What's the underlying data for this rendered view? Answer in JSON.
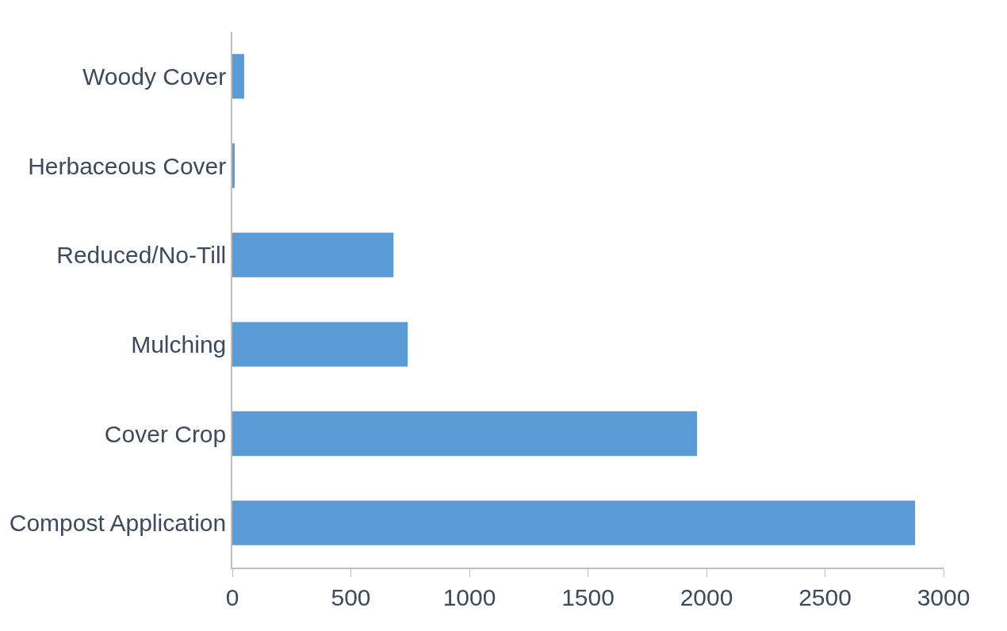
{
  "chart_data": {
    "type": "bar",
    "orientation": "horizontal",
    "categories": [
      "Woody Cover",
      "Herbaceous Cover",
      "Reduced/No-Till",
      "Mulching",
      "Cover Crop",
      "Compost Application"
    ],
    "values": [
      50,
      10,
      680,
      740,
      1960,
      2880
    ],
    "color": "#5b9bd5",
    "xlim": [
      0,
      3000
    ],
    "xticks": [
      0,
      500,
      1000,
      1500,
      2000,
      2500,
      3000
    ]
  }
}
